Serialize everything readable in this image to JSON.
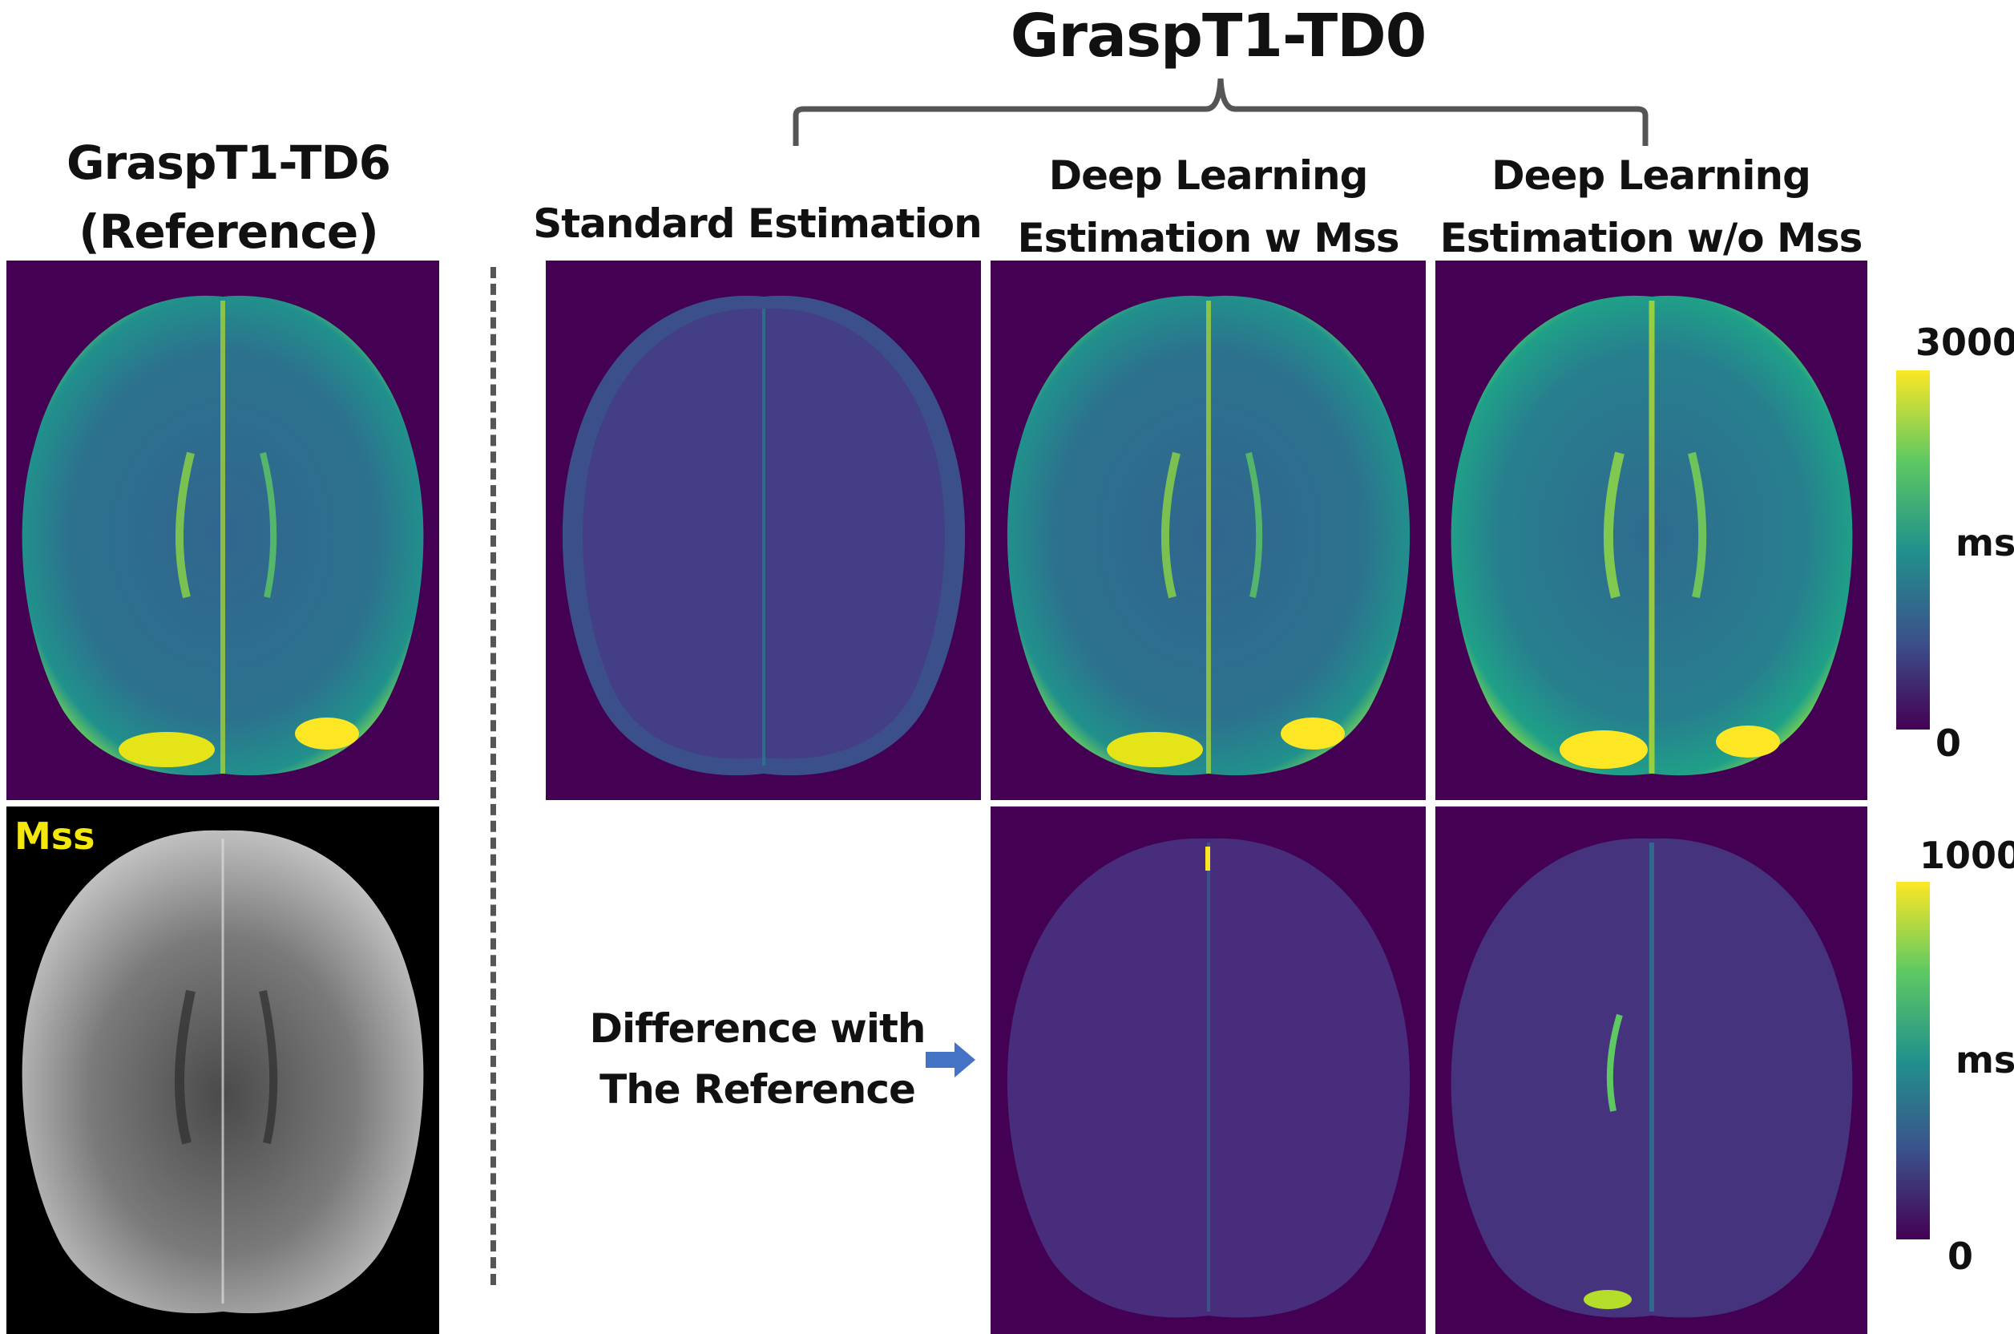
{
  "titles": {
    "main": "GraspT1-TD0",
    "reference_line1": "GraspT1-TD6",
    "reference_line2": "(Reference)",
    "standard": "Standard Estimation",
    "dl_w_line1": "Deep Learning",
    "dl_w_line2": "Estimation w Mss",
    "dl_wo_line1": "Deep Learning",
    "dl_wo_line2": "Estimation w/o Mss"
  },
  "panels": {
    "mss_label": "Mss"
  },
  "difference": {
    "line1": "Difference with",
    "line2": "The Reference"
  },
  "colorbar_t1": {
    "max": "3000",
    "unit": "ms",
    "min": "0"
  },
  "colorbar_diff": {
    "max": "1000",
    "unit": "ms",
    "min": "0"
  },
  "colors": {
    "viridis_dark": "#440154",
    "viridis_yellow": "#fde725",
    "mss_label": "#f3e70c",
    "arrow": "#4472c4"
  }
}
